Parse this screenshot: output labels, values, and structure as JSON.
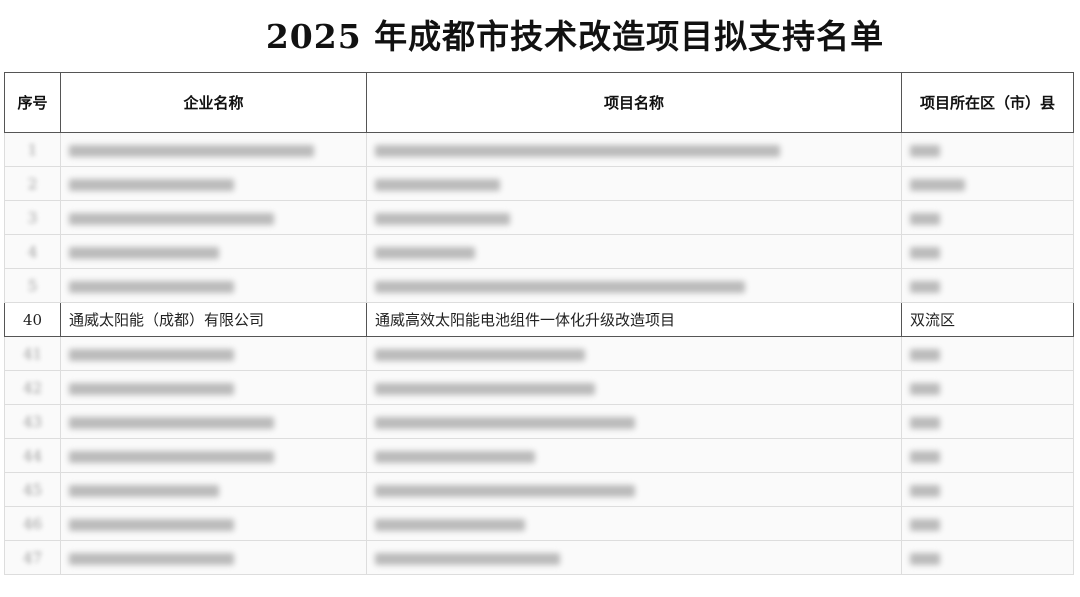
{
  "title": "2025 年成都市技术改造项目拟支持名单",
  "table": {
    "headers": [
      "序号",
      "企业名称",
      "项目名称",
      "项目所在区（市）县"
    ],
    "visible_row": {
      "num": "40",
      "company": "通威太阳能（成都）有限公司",
      "project": "通威高效太阳能电池组件一体化升级改造项目",
      "district": "双流区"
    },
    "blurred_rows_before": [
      "1",
      "2",
      "3",
      "4",
      "5"
    ],
    "blurred_rows_after": [
      "41",
      "42",
      "43",
      "44",
      "45",
      "46",
      "47"
    ]
  }
}
